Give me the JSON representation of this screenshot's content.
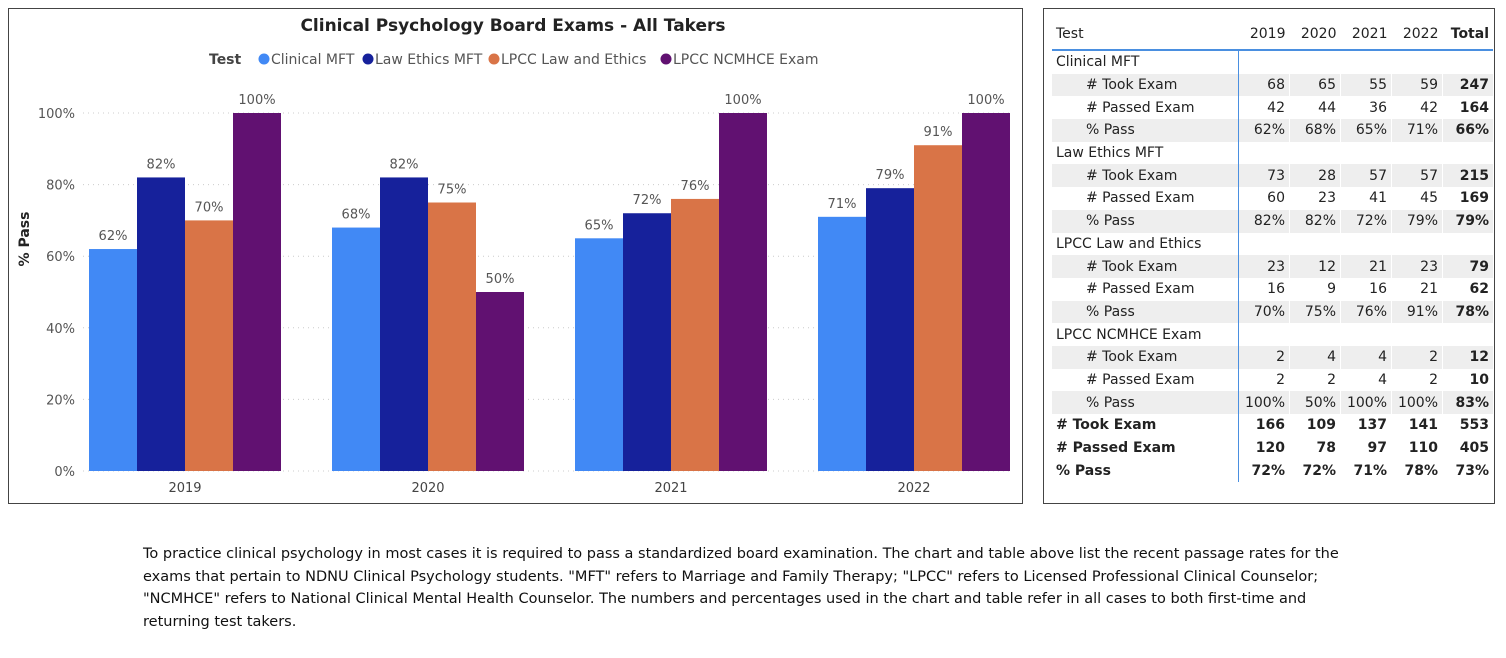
{
  "chart_data": {
    "type": "bar",
    "title": "Clinical Psychology Board Exams - All Takers",
    "legend_title": "Test",
    "legend_position": "top",
    "ylabel": "% Pass",
    "xlabel": "",
    "ylim": [
      0,
      100
    ],
    "yticks": [
      "0%",
      "20%",
      "40%",
      "60%",
      "80%",
      "100%"
    ],
    "grid": true,
    "categories": [
      "2019",
      "2020",
      "2021",
      "2022"
    ],
    "series": [
      {
        "name": "Clinical MFT",
        "color": "#4189f5",
        "values": [
          62,
          68,
          65,
          71
        ]
      },
      {
        "name": "Law Ethics MFT",
        "color": "#16219b",
        "values": [
          82,
          82,
          72,
          79
        ]
      },
      {
        "name": "LPCC Law and Ethics",
        "color": "#d97447",
        "values": [
          70,
          75,
          76,
          91
        ]
      },
      {
        "name": "LPCC NCMHCE Exam",
        "color": "#611171",
        "values": [
          100,
          50,
          100,
          100
        ]
      }
    ]
  },
  "table": {
    "header": [
      "Test",
      "2019",
      "2020",
      "2021",
      "2022",
      "Total"
    ],
    "groups": [
      {
        "name": "Clinical MFT",
        "rows": [
          {
            "label": "# Took Exam",
            "values": [
              "68",
              "65",
              "55",
              "59"
            ],
            "total": "247"
          },
          {
            "label": "# Passed Exam",
            "values": [
              "42",
              "44",
              "36",
              "42"
            ],
            "total": "164"
          },
          {
            "label": "% Pass",
            "values": [
              "62%",
              "68%",
              "65%",
              "71%"
            ],
            "total": "66%"
          }
        ]
      },
      {
        "name": "Law Ethics MFT",
        "rows": [
          {
            "label": "# Took Exam",
            "values": [
              "73",
              "28",
              "57",
              "57"
            ],
            "total": "215"
          },
          {
            "label": "# Passed Exam",
            "values": [
              "60",
              "23",
              "41",
              "45"
            ],
            "total": "169"
          },
          {
            "label": "% Pass",
            "values": [
              "82%",
              "82%",
              "72%",
              "79%"
            ],
            "total": "79%"
          }
        ]
      },
      {
        "name": "LPCC Law and Ethics",
        "rows": [
          {
            "label": "# Took Exam",
            "values": [
              "23",
              "12",
              "21",
              "23"
            ],
            "total": "79"
          },
          {
            "label": "# Passed Exam",
            "values": [
              "16",
              "9",
              "16",
              "21"
            ],
            "total": "62"
          },
          {
            "label": "% Pass",
            "values": [
              "70%",
              "75%",
              "76%",
              "91%"
            ],
            "total": "78%"
          }
        ]
      },
      {
        "name": "LPCC NCMHCE Exam",
        "rows": [
          {
            "label": "# Took Exam",
            "values": [
              "2",
              "4",
              "4",
              "2"
            ],
            "total": "12"
          },
          {
            "label": "# Passed Exam",
            "values": [
              "2",
              "2",
              "4",
              "2"
            ],
            "total": "10"
          },
          {
            "label": "% Pass",
            "values": [
              "100%",
              "50%",
              "100%",
              "100%"
            ],
            "total": "83%"
          }
        ]
      }
    ],
    "totals": [
      {
        "label": "# Took Exam",
        "values": [
          "166",
          "109",
          "137",
          "141"
        ],
        "total": "553"
      },
      {
        "label": "# Passed Exam",
        "values": [
          "120",
          "78",
          "97",
          "110"
        ],
        "total": "405"
      },
      {
        "label": "% Pass",
        "values": [
          "72%",
          "72%",
          "71%",
          "78%"
        ],
        "total": "73%"
      }
    ]
  },
  "note": "To practice clinical psychology in most cases it is required to pass a standardized board examination.  The chart and table above list the recent passage rates for the exams that pertain to NDNU Clinical Psychology students.  \"MFT\" refers to Marriage and Family Therapy; \"LPCC\" refers to Licensed Professional Clinical Counselor; \"NCMHCE\" refers to National Clinical Mental Health Counselor.  The numbers and percentages used in the chart and table refer in all cases to both first-time and returning test takers."
}
